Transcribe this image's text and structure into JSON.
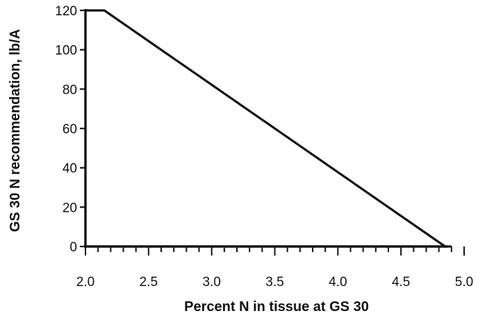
{
  "chart_data": {
    "type": "line",
    "title": "",
    "xlabel": "Percent N in tissue at GS 30",
    "ylabel": "GS 30 N recommendation, lb/A",
    "xlim": [
      2.0,
      5.0
    ],
    "ylim": [
      0,
      120
    ],
    "x_ticks": [
      "2.0",
      "2.5",
      "3.0",
      "3.5",
      "4.0",
      "4.5",
      "5.0"
    ],
    "y_ticks": [
      "0",
      "20",
      "40",
      "60",
      "80",
      "100",
      "120"
    ],
    "x_minor_step": 0.1,
    "grid": false,
    "legend": "none",
    "series": [
      {
        "x": [
          2.0,
          2.15,
          4.85,
          4.9
        ],
        "y": [
          120,
          120,
          0,
          0
        ]
      }
    ],
    "line_color": "#111111"
  }
}
